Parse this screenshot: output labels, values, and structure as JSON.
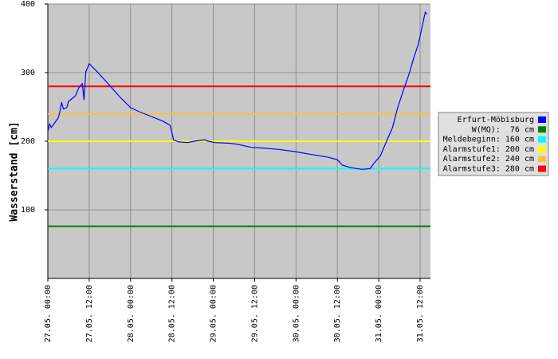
{
  "chart_data": {
    "type": "line",
    "y_label": "Wasserstand [cm]",
    "x": [
      "27.05. 00:00",
      "27.05. 00:30",
      "27.05. 01:00",
      "27.05. 03:00",
      "27.05. 03:30",
      "27.05. 04:00",
      "27.05. 04:30",
      "27.05. 05:30",
      "27.05. 06:00",
      "27.05. 08:00",
      "27.05. 09:00",
      "27.05. 10:00",
      "27.05. 10:30",
      "27.05. 11:00",
      "27.05. 12:00",
      "27.05. 14:00",
      "27.05. 16:00",
      "27.05. 18:30",
      "27.05. 21:00",
      "28.05. 00:00",
      "28.05. 02:30",
      "28.05. 06:00",
      "28.05. 09:30",
      "28.05. 11:30",
      "28.05. 12:30",
      "28.05. 14:00",
      "28.05. 16:30",
      "28.05. 18:30",
      "28.05. 21:30",
      "28.05. 22:30",
      "29.05. 00:30",
      "29.05. 05:00",
      "29.05. 07:30",
      "29.05. 11:00",
      "29.05. 14:30",
      "29.05. 19:00",
      "29.05. 23:30",
      "30.05. 04:00",
      "30.05. 09:00",
      "30.05. 12:00",
      "30.05. 13:30",
      "30.05. 15:30",
      "30.05. 19:00",
      "30.05. 21:30",
      "30.05. 22:30",
      "31.05. 00:30",
      "31.05. 02:00",
      "31.05. 04:00",
      "31.05. 05:30",
      "31.05. 07:00",
      "31.05. 09:00",
      "31.05. 10:00",
      "31.05. 11:30",
      "31.05. 12:30",
      "31.05. 13:30",
      "31.05. 14:00"
    ],
    "series": [
      {
        "name": "Erfurt-Möbisburg",
        "color": "#0000ff",
        "values": [
          214,
          225,
          220,
          234,
          243,
          257,
          247,
          249,
          258,
          266,
          278,
          284,
          260,
          301,
          313,
          303,
          292,
          278,
          264,
          249,
          243,
          236,
          229,
          223,
          202,
          199,
          198,
          200,
          202,
          200,
          198,
          197,
          195,
          191,
          190,
          188,
          185,
          181,
          177,
          173,
          165,
          162,
          159,
          160,
          167,
          179,
          197,
          220,
          249,
          272,
          301,
          319,
          342,
          365,
          388,
          385
        ]
      }
    ],
    "thresholds": [
      {
        "name": "W(MQ):  76 cm",
        "value": 76,
        "color": "#008000"
      },
      {
        "name": "Meldebeginn: 160 cm",
        "value": 160,
        "color": "#00ffff"
      },
      {
        "name": "Alarmstufe1: 200 cm",
        "value": 200,
        "color": "#ffff00"
      },
      {
        "name": "Alarmstufe2: 240 cm",
        "value": 240,
        "color": "#ffc040"
      },
      {
        "name": "Alarmstufe3: 280 cm",
        "value": 280,
        "color": "#ff0000"
      }
    ],
    "xlim": [
      "27.05. 00:00",
      "31.05. 15:00"
    ],
    "xticks": [
      "27.05. 00:00",
      "27.05. 12:00",
      "28.05. 00:00",
      "28.05. 12:00",
      "29.05. 00:00",
      "29.05. 12:00",
      "30.05. 00:00",
      "30.05. 12:00",
      "31.05. 00:00",
      "31.05. 12:00"
    ],
    "ylim": [
      0,
      400
    ],
    "yticks": [
      100,
      200,
      300,
      400
    ],
    "grid": true
  }
}
